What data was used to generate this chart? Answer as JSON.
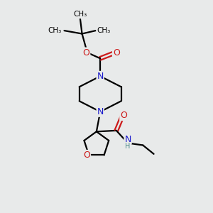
{
  "bg_color": "#e8eaea",
  "atom_color_C": "#000000",
  "atom_color_N": "#1a1acc",
  "atom_color_O": "#cc1a1a",
  "atom_color_H": "#4a8888",
  "bond_color": "#000000",
  "bond_lw": 1.6,
  "font_size_atom": 9.0,
  "fig_size": [
    3.0,
    3.0
  ],
  "dpi": 100,
  "xlim": [
    0,
    10
  ],
  "ylim": [
    0,
    10
  ]
}
